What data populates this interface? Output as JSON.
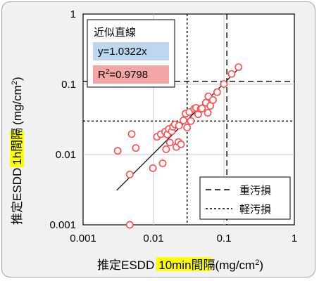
{
  "chart_data": {
    "type": "scatter",
    "x_scale": "log",
    "y_scale": "log",
    "xlim": [
      0.001,
      1
    ],
    "ylim": [
      0.001,
      1
    ],
    "x_ticks": [
      "0.001",
      "0.01",
      "0.1",
      "1"
    ],
    "y_ticks": [
      "0.001",
      "0.01",
      "0.1",
      "1"
    ],
    "xlabel": {
      "prefix": "推定ESDD",
      "highlight": "10min間隔",
      "unit": "(mg/cm",
      "unit_sup": "2",
      "unit_end": ")",
      "highlight_color": "#ffff00"
    },
    "ylabel": {
      "prefix": "推定ESDD",
      "highlight": "1h間隔",
      "unit": "(mg/cm",
      "unit_sup": "2",
      "unit_end": ")",
      "highlight_color": "#ffff00"
    },
    "grid": true,
    "points": {
      "color": "#ff4d4d",
      "x": [
        0.0031,
        0.0046,
        0.0049,
        0.0056,
        0.0098,
        0.0112,
        0.0127,
        0.0135,
        0.0146,
        0.0151,
        0.0157,
        0.0165,
        0.0171,
        0.0182,
        0.0189,
        0.0201,
        0.0211,
        0.0226,
        0.023,
        0.0246,
        0.0266,
        0.0285,
        0.03,
        0.0322,
        0.0339,
        0.0377,
        0.0402,
        0.0431,
        0.0467,
        0.0487,
        0.0553,
        0.059,
        0.0602,
        0.0641,
        0.0699,
        0.0802,
        0.0998,
        0.1286,
        0.1612,
        0.0046
      ],
      "y": [
        0.0113,
        0.0052,
        0.0196,
        0.0124,
        0.0064,
        0.0179,
        0.0195,
        0.0075,
        0.0211,
        0.0119,
        0.0193,
        0.0231,
        0.0148,
        0.0214,
        0.0249,
        0.0269,
        0.0128,
        0.0151,
        0.0258,
        0.014,
        0.0306,
        0.0383,
        0.0242,
        0.0403,
        0.03,
        0.0448,
        0.0462,
        0.0374,
        0.0446,
        0.0454,
        0.0547,
        0.0393,
        0.0673,
        0.0493,
        0.0598,
        0.0774,
        0.1009,
        0.1405,
        0.1754,
        0.001
      ]
    },
    "fit_line": {
      "slope": 1.0322,
      "x_range": [
        0.003,
        0.16
      ]
    },
    "thresholds": {
      "heavy": {
        "name": "重汚損",
        "value": 0.11,
        "style": "dashed"
      },
      "light": {
        "name": "軽汚損",
        "value": 0.03,
        "style": "short-dashed"
      }
    },
    "annotation": {
      "title": "近似直線",
      "equation": "y=1.0322x",
      "equation_color": "#bdd7ee",
      "r2_prefix": "R",
      "r2_sup": "2",
      "r2_value": "=0.9798",
      "r2_color": "#f4a6a6"
    },
    "legend": {
      "position": "bottom-right",
      "items": [
        {
          "label": "重汚損",
          "style": "dashed"
        },
        {
          "label": "軽汚損",
          "style": "short-dashed"
        }
      ]
    }
  }
}
